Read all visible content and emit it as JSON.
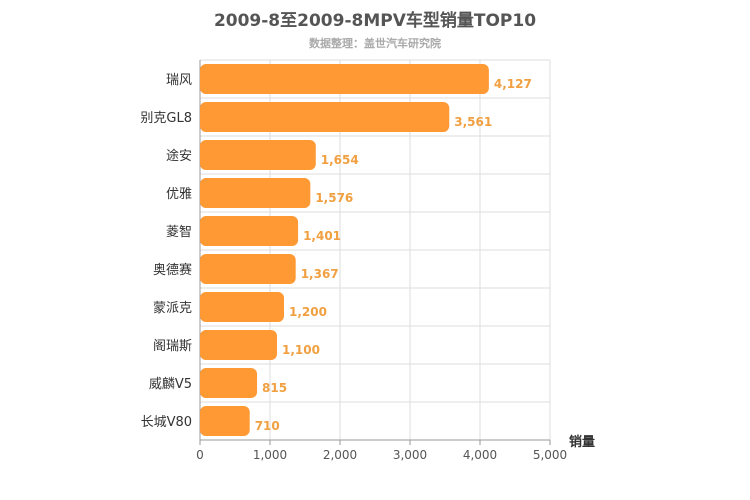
{
  "chart_data": {
    "type": "bar",
    "orientation": "horizontal",
    "title": "2009-8至2009-8MPV车型销量TOP10",
    "subtitle": "数据整理：盖世汽车研究院",
    "xlabel": "销量",
    "ylabel": "",
    "categories": [
      "瑞风",
      "别克GL8",
      "途安",
      "优雅",
      "菱智",
      "奥德赛",
      "蒙派克",
      "阁瑞斯",
      "威麟V5",
      "长城V80"
    ],
    "values": [
      4127,
      3561,
      1654,
      1576,
      1401,
      1367,
      1200,
      1100,
      815,
      710
    ],
    "value_labels": [
      "4,127",
      "3,561",
      "1,654",
      "1,576",
      "1,401",
      "1,367",
      "1,200",
      "1,100",
      "815",
      "710"
    ],
    "xlim": [
      0,
      5000
    ],
    "xticks": [
      0,
      1000,
      2000,
      3000,
      4000,
      5000
    ],
    "xtick_labels": [
      "0",
      "1,000",
      "2,000",
      "3,000",
      "4,000",
      "5,000"
    ],
    "grid": true,
    "legend": "none",
    "colors": {
      "bar": "#FF9933",
      "value_label": "#F0A040",
      "title": "#555555",
      "subtitle": "#AAAAAA",
      "category_label": "#333333",
      "tick_label": "#555555",
      "grid": "#DDDDDD",
      "axis": "#999999"
    }
  }
}
